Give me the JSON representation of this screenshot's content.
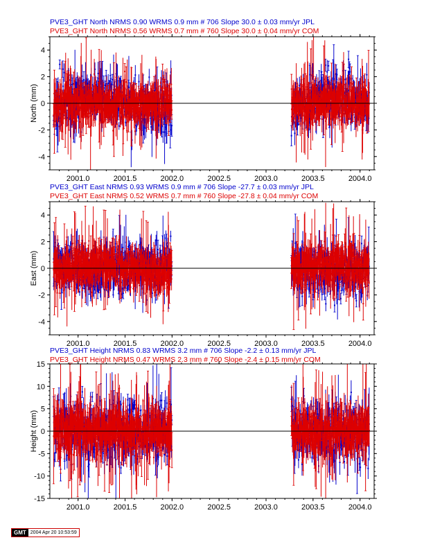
{
  "colors": {
    "jpl": "#0000cc",
    "com": "#dd0000",
    "axis": "#000000"
  },
  "chart_data": [
    {
      "type": "scatter",
      "headers": [
        {
          "text": "PVE3_GHT North NRMS 0.90 WRMS  0.9 mm # 706 Slope   30.0 ±  0.03 mm/yr JPL",
          "color": "#0000cc"
        },
        {
          "text": "PVE3_GHT North NRMS 0.56 WRMS  0.7 mm # 760 Slope   30.0 ±  0.04 mm/yr COM",
          "color": "#dd0000"
        }
      ],
      "ylabel": "North (mm)",
      "xlim": [
        2000.7,
        2004.15
      ],
      "ylim": [
        -5,
        5
      ],
      "xticks": [
        "2001.0",
        "2001.5",
        "2002.0",
        "2002.5",
        "2003.0",
        "2003.5",
        "2004.0"
      ],
      "yticks": [
        "-4",
        "-2",
        "0",
        "2",
        "4"
      ],
      "zero_line": 0,
      "series": [
        {
          "name": "JPL",
          "color": "#0000cc",
          "segments": [
            [
              2000.74,
              2002.0
            ],
            [
              2003.27,
              2004.1
            ]
          ],
          "spread": 0.9,
          "err": 0.7,
          "seed": 11,
          "wave": 0.6
        },
        {
          "name": "COM",
          "color": "#dd0000",
          "segments": [
            [
              2000.74,
              2002.0
            ],
            [
              2003.27,
              2004.1
            ]
          ],
          "spread": 0.7,
          "err": 1.0,
          "seed": 23,
          "wave": 0.0
        }
      ]
    },
    {
      "type": "scatter",
      "headers": [
        {
          "text": "PVE3_GHT East NRMS 0.93 WRMS  0.9 mm # 706 Slope  -27.7 ±  0.03 mm/yr JPL",
          "color": "#0000cc"
        },
        {
          "text": "PVE3_GHT East NRMS 0.52 WRMS  0.7 mm # 760 Slope  -27.8 ±  0.04 mm/yr COM",
          "color": "#dd0000"
        }
      ],
      "ylabel": "East (mm)",
      "xlim": [
        2000.7,
        2004.15
      ],
      "ylim": [
        -5,
        5
      ],
      "xticks": [
        "2001.0",
        "2001.5",
        "2002.0",
        "2002.5",
        "2003.0",
        "2003.5",
        "2004.0"
      ],
      "yticks": [
        "-4",
        "-2",
        "0",
        "2",
        "4"
      ],
      "zero_line": 0,
      "series": [
        {
          "name": "JPL",
          "color": "#0000cc",
          "segments": [
            [
              2000.74,
              2002.0
            ],
            [
              2003.27,
              2004.1
            ]
          ],
          "spread": 0.9,
          "err": 0.7,
          "seed": 37,
          "wave": -0.3
        },
        {
          "name": "COM",
          "color": "#dd0000",
          "segments": [
            [
              2000.74,
              2002.0
            ],
            [
              2003.27,
              2004.1
            ]
          ],
          "spread": 0.7,
          "err": 1.0,
          "seed": 41,
          "wave": 0.2
        }
      ]
    },
    {
      "type": "scatter",
      "headers": [
        {
          "text": "PVE3_GHT Height NRMS 0.83 WRMS  3.2 mm # 706 Slope   -2.2 ±  0.13 mm/yr JPL",
          "color": "#0000cc"
        },
        {
          "text": "PVE3_GHT Height NRMS 0.47 WRMS  2.3 mm # 760 Slope   -2.4 ±  0.15 mm/yr COM",
          "color": "#dd0000"
        }
      ],
      "ylabel": "Height (mm)",
      "xlim": [
        2000.7,
        2004.15
      ],
      "ylim": [
        -15,
        15
      ],
      "xticks": [
        "2001.0",
        "2001.5",
        "2002.0",
        "2002.5",
        "2003.0",
        "2003.5",
        "2004.0"
      ],
      "yticks": [
        "-15",
        "-10",
        "-5",
        "0",
        "5",
        "10",
        "15"
      ],
      "zero_line": 0,
      "series": [
        {
          "name": "JPL",
          "color": "#0000cc",
          "segments": [
            [
              2000.74,
              2002.0
            ],
            [
              2003.27,
              2004.1
            ]
          ],
          "spread": 3.2,
          "err": 2.3,
          "seed": 53,
          "wave": 0.0
        },
        {
          "name": "COM",
          "color": "#dd0000",
          "segments": [
            [
              2000.74,
              2002.0
            ],
            [
              2003.27,
              2004.1
            ]
          ],
          "spread": 2.3,
          "err": 3.5,
          "seed": 67,
          "wave": 0.0
        }
      ]
    }
  ],
  "footer": {
    "logo": "GMT",
    "timestamp": "2004 Apr 20 10:53:59"
  }
}
